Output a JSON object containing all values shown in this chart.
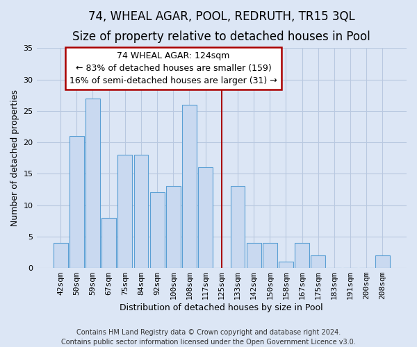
{
  "title": "74, WHEAL AGAR, POOL, REDRUTH, TR15 3QL",
  "subtitle": "Size of property relative to detached houses in Pool",
  "xlabel": "Distribution of detached houses by size in Pool",
  "ylabel": "Number of detached properties",
  "bar_labels": [
    "42sqm",
    "50sqm",
    "59sqm",
    "67sqm",
    "75sqm",
    "84sqm",
    "92sqm",
    "100sqm",
    "108sqm",
    "117sqm",
    "125sqm",
    "133sqm",
    "142sqm",
    "150sqm",
    "158sqm",
    "167sqm",
    "175sqm",
    "183sqm",
    "191sqm",
    "200sqm",
    "208sqm"
  ],
  "bar_values": [
    4,
    21,
    27,
    8,
    18,
    18,
    12,
    13,
    26,
    16,
    0,
    13,
    4,
    4,
    1,
    4,
    2,
    0,
    0,
    0,
    2
  ],
  "bar_color": "#c9d9f0",
  "bar_edge_color": "#5a9fd4",
  "vline_x_index": 10,
  "vline_color": "#aa0000",
  "ylim": [
    0,
    35
  ],
  "yticks": [
    0,
    5,
    10,
    15,
    20,
    25,
    30,
    35
  ],
  "annotation_title": "74 WHEAL AGAR: 124sqm",
  "annotation_line1": "← 83% of detached houses are smaller (159)",
  "annotation_line2": "16% of semi-detached houses are larger (31) →",
  "annotation_box_facecolor": "#ffffff",
  "annotation_box_edgecolor": "#aa0000",
  "footer_line1": "Contains HM Land Registry data © Crown copyright and database right 2024.",
  "footer_line2": "Contains public sector information licensed under the Open Government Licence v3.0.",
  "fig_facecolor": "#dce6f5",
  "axes_facecolor": "#dce6f5",
  "grid_color": "#b8c8e0",
  "title_fontsize": 12,
  "subtitle_fontsize": 10,
  "tick_label_fontsize": 8,
  "ylabel_fontsize": 9,
  "xlabel_fontsize": 9,
  "annotation_fontsize": 9,
  "footer_fontsize": 7
}
